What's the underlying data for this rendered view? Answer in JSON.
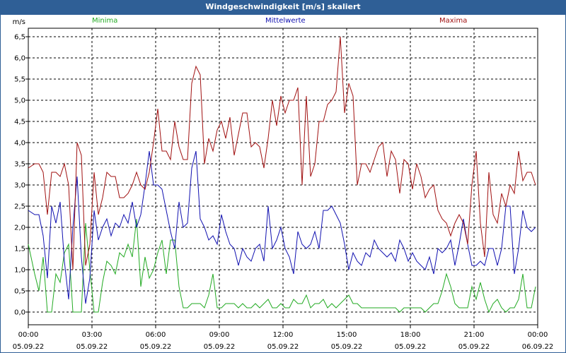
{
  "window": {
    "title": "Windgeschwindigkeit [m/s] skaliert"
  },
  "chart_data": {
    "type": "line",
    "title": "Windgeschwindigkeit [m/s] skaliert",
    "ylabel": "m/s",
    "ylim": [
      -0.3,
      6.7
    ],
    "xlim": [
      0,
      24
    ],
    "y_ticks": [
      "0,0",
      "0,5",
      "1,0",
      "1,5",
      "2,0",
      "2,5",
      "3,0",
      "3,5",
      "4,0",
      "4,5",
      "5,0",
      "5,5",
      "6,0",
      "6,5"
    ],
    "y_tick_values": [
      0,
      0.5,
      1,
      1.5,
      2,
      2.5,
      3,
      3.5,
      4,
      4.5,
      5,
      5.5,
      6,
      6.5
    ],
    "x_ticks": [
      {
        "time": "00:00",
        "date": "05.09.22"
      },
      {
        "time": "03:00",
        "date": "05.09.22"
      },
      {
        "time": "06:00",
        "date": "05.09.22"
      },
      {
        "time": "09:00",
        "date": "05.09.22"
      },
      {
        "time": "12:00",
        "date": "05.09.22"
      },
      {
        "time": "15:00",
        "date": "05.09.22"
      },
      {
        "time": "18:00",
        "date": "05.09.22"
      },
      {
        "time": "21:00",
        "date": "05.09.22"
      },
      {
        "time": "00:00",
        "date": "06.09.22"
      }
    ],
    "x_tick_values": [
      0,
      3,
      6,
      9,
      12,
      15,
      18,
      21,
      24
    ],
    "grid": true,
    "legend_position": "top",
    "series": [
      {
        "name": "Minima",
        "color": "#22aa22",
        "x": [
          0,
          0.3,
          0.5,
          0.7,
          0.9,
          1.1,
          1.3,
          1.5,
          1.7,
          1.9,
          2.1,
          2.3,
          2.5,
          2.7,
          2.9,
          3.1,
          3.3,
          3.5,
          3.7,
          3.9,
          4.1,
          4.3,
          4.5,
          4.7,
          4.9,
          5.1,
          5.3,
          5.5,
          5.7,
          5.9,
          6.1,
          6.3,
          6.5,
          6.7,
          6.9,
          7.1,
          7.3,
          7.5,
          7.7,
          7.9,
          8.1,
          8.3,
          8.5,
          8.7,
          8.9,
          9.1,
          9.3,
          9.5,
          9.7,
          9.9,
          10.1,
          10.3,
          10.5,
          10.7,
          10.9,
          11.1,
          11.3,
          11.5,
          11.7,
          11.9,
          12.1,
          12.3,
          12.5,
          12.7,
          12.9,
          13.1,
          13.3,
          13.5,
          13.7,
          13.9,
          14.1,
          14.3,
          14.5,
          14.7,
          14.9,
          15.1,
          15.3,
          15.5,
          15.7,
          15.9,
          16.1,
          16.3,
          16.5,
          16.7,
          16.9,
          17.1,
          17.3,
          17.5,
          17.7,
          17.9,
          18.1,
          18.3,
          18.5,
          18.7,
          18.9,
          19.1,
          19.3,
          19.5,
          19.7,
          19.9,
          20.1,
          20.3,
          20.5,
          20.7,
          20.9,
          21.1,
          21.3,
          21.5,
          21.7,
          21.9,
          22.1,
          22.3,
          22.5,
          22.7,
          22.9,
          23.1,
          23.3,
          23.5,
          23.7,
          23.9
        ],
        "values": [
          1.6,
          0.9,
          0.5,
          1.3,
          0,
          0,
          0.9,
          0.7,
          1.4,
          1.6,
          0,
          0,
          0,
          2.1,
          1.0,
          0,
          0,
          0.7,
          1.2,
          1.1,
          0.9,
          1.4,
          1.3,
          1.6,
          1.3,
          2.2,
          0.6,
          1.3,
          0.8,
          1.0,
          1.4,
          1.7,
          0.9,
          1.7,
          1.7,
          0.6,
          0.1,
          0.1,
          0.2,
          0.2,
          0.2,
          0.1,
          0.4,
          0.9,
          0.1,
          0.1,
          0.2,
          0.2,
          0.2,
          0.1,
          0.2,
          0.1,
          0.1,
          0.2,
          0.1,
          0.2,
          0.3,
          0.1,
          0.1,
          0.2,
          0.1,
          0.1,
          0.3,
          0.2,
          0.2,
          0.4,
          0.1,
          0.2,
          0.2,
          0.3,
          0.1,
          0.2,
          0.1,
          0.2,
          0.3,
          0.4,
          0.2,
          0.2,
          0.1,
          0.1,
          0.1,
          0.1,
          0.1,
          0.1,
          0.1,
          0.1,
          0.1,
          0.0,
          0.1,
          0.1,
          0.1,
          0.1,
          0.1,
          0.0,
          0.1,
          0.2,
          0.2,
          0.5,
          0.9,
          0.6,
          0.2,
          0.1,
          0.1,
          0.1,
          0.6,
          0.3,
          0.7,
          0.3,
          0.0,
          0.2,
          0.3,
          0.1,
          0.0,
          0.1,
          0.1,
          0.3,
          0.9,
          0.1,
          0.1,
          0.6
        ]
      },
      {
        "name": "Mittelwerte",
        "color": "#1010b0",
        "x": [
          0,
          0.3,
          0.5,
          0.7,
          0.9,
          1.1,
          1.3,
          1.5,
          1.7,
          1.9,
          2.1,
          2.3,
          2.5,
          2.7,
          2.9,
          3.1,
          3.3,
          3.5,
          3.7,
          3.9,
          4.1,
          4.3,
          4.5,
          4.7,
          4.9,
          5.1,
          5.3,
          5.5,
          5.7,
          5.9,
          6.1,
          6.3,
          6.5,
          6.7,
          6.9,
          7.1,
          7.3,
          7.5,
          7.7,
          7.9,
          8.1,
          8.3,
          8.5,
          8.7,
          8.9,
          9.1,
          9.3,
          9.5,
          9.7,
          9.9,
          10.1,
          10.3,
          10.5,
          10.7,
          10.9,
          11.1,
          11.3,
          11.5,
          11.7,
          11.9,
          12.1,
          12.3,
          12.5,
          12.7,
          12.9,
          13.1,
          13.3,
          13.5,
          13.7,
          13.9,
          14.1,
          14.3,
          14.5,
          14.7,
          14.9,
          15.1,
          15.3,
          15.5,
          15.7,
          15.9,
          16.1,
          16.3,
          16.5,
          16.7,
          16.9,
          17.1,
          17.3,
          17.5,
          17.7,
          17.9,
          18.1,
          18.3,
          18.5,
          18.7,
          18.9,
          19.1,
          19.3,
          19.5,
          19.7,
          19.9,
          20.1,
          20.3,
          20.5,
          20.7,
          20.9,
          21.1,
          21.3,
          21.5,
          21.7,
          21.9,
          22.1,
          22.3,
          22.5,
          22.7,
          22.9,
          23.1,
          23.3,
          23.5,
          23.7,
          23.9
        ],
        "values": [
          2.4,
          2.3,
          2.3,
          1.8,
          0.8,
          2.5,
          2.1,
          2.6,
          1.2,
          0.3,
          2.0,
          3.2,
          1.3,
          0.2,
          0.8,
          2.4,
          1.7,
          2.0,
          2.2,
          1.8,
          2.1,
          2.0,
          2.3,
          2.1,
          2.6,
          2.0,
          2.3,
          3.0,
          3.8,
          3.0,
          3.0,
          2.9,
          2.4,
          1.9,
          1.5,
          2.6,
          2.0,
          2.1,
          3.4,
          3.8,
          2.2,
          2.0,
          1.7,
          1.8,
          1.6,
          2.3,
          1.9,
          1.6,
          1.5,
          1.1,
          1.5,
          1.3,
          1.2,
          1.5,
          1.6,
          1.2,
          2.5,
          1.5,
          1.7,
          2.0,
          1.5,
          1.3,
          0.9,
          1.9,
          1.6,
          1.5,
          1.6,
          1.9,
          1.5,
          2.4,
          2.4,
          2.5,
          2.3,
          2.1,
          1.6,
          1.0,
          1.4,
          1.2,
          1.1,
          1.4,
          1.3,
          1.7,
          1.5,
          1.4,
          1.3,
          1.4,
          1.2,
          1.7,
          1.5,
          1.2,
          1.4,
          1.2,
          1.1,
          1.0,
          1.3,
          0.9,
          1.5,
          1.4,
          1.5,
          1.7,
          1.1,
          1.6,
          2.2,
          1.6,
          1.1,
          1.1,
          1.2,
          1.1,
          1.5,
          1.5,
          1.1,
          1.5,
          2.5,
          2.5,
          0.9,
          1.5,
          2.4,
          2.0,
          1.9,
          2.0
        ],
        "continuous": true
      },
      {
        "name": "Maxima",
        "color": "#a01010",
        "x": [
          0,
          0.3,
          0.5,
          0.7,
          0.9,
          1.1,
          1.3,
          1.5,
          1.7,
          1.9,
          2.1,
          2.3,
          2.5,
          2.7,
          2.9,
          3.1,
          3.3,
          3.5,
          3.7,
          3.9,
          4.1,
          4.3,
          4.5,
          4.7,
          4.9,
          5.1,
          5.3,
          5.5,
          5.7,
          5.9,
          6.1,
          6.3,
          6.5,
          6.7,
          6.9,
          7.1,
          7.3,
          7.5,
          7.7,
          7.9,
          8.1,
          8.3,
          8.5,
          8.7,
          8.9,
          9.1,
          9.3,
          9.5,
          9.7,
          9.9,
          10.1,
          10.3,
          10.5,
          10.7,
          10.9,
          11.1,
          11.3,
          11.5,
          11.7,
          11.9,
          12.1,
          12.3,
          12.5,
          12.7,
          12.9,
          13.1,
          13.3,
          13.5,
          13.7,
          13.9,
          14.1,
          14.3,
          14.5,
          14.7,
          14.9,
          15.1,
          15.3,
          15.5,
          15.7,
          15.9,
          16.1,
          16.3,
          16.5,
          16.7,
          16.9,
          17.1,
          17.3,
          17.5,
          17.7,
          17.9,
          18.1,
          18.3,
          18.5,
          18.7,
          18.9,
          19.1,
          19.3,
          19.5,
          19.7,
          19.9,
          20.1,
          20.3,
          20.5,
          20.7,
          20.9,
          21.1,
          21.3,
          21.5,
          21.7,
          21.9,
          22.1,
          22.3,
          22.5,
          22.7,
          22.9,
          23.1,
          23.3,
          23.5,
          23.7,
          23.9
        ],
        "values": [
          3.4,
          3.5,
          3.5,
          3.3,
          2.3,
          3.3,
          3.3,
          3.2,
          3.5,
          3.0,
          1.0,
          4.0,
          3.7,
          1.1,
          1.6,
          3.3,
          2.3,
          2.7,
          3.3,
          3.2,
          3.2,
          2.7,
          2.7,
          2.8,
          3.0,
          3.3,
          3.0,
          2.9,
          3.3,
          4.0,
          4.8,
          3.8,
          3.8,
          3.6,
          4.5,
          3.9,
          3.6,
          3.6,
          5.4,
          5.8,
          5.6,
          3.5,
          4.1,
          3.8,
          4.3,
          4.5,
          4.1,
          4.6,
          3.7,
          4.2,
          4.7,
          4.7,
          3.9,
          4.0,
          3.9,
          3.4,
          4.1,
          5.0,
          4.4,
          5.1,
          4.7,
          5.0,
          5.0,
          5.3,
          3.0,
          5.1,
          3.2,
          3.5,
          4.5,
          4.5,
          4.9,
          5.0,
          5.2,
          6.5,
          4.7,
          5.4,
          5.1,
          3.0,
          3.5,
          3.5,
          3.3,
          3.6,
          3.9,
          4.0,
          3.2,
          3.8,
          3.6,
          2.8,
          3.6,
          3.5,
          2.9,
          3.5,
          3.2,
          2.7,
          2.9,
          3.0,
          2.4,
          2.2,
          2.1,
          1.8,
          2.1,
          2.3,
          2.1,
          1.6,
          3.0,
          3.8,
          2.1,
          1.3,
          3.3,
          2.3,
          2.1,
          2.8,
          2.5,
          3.0,
          2.8,
          3.8,
          3.1,
          3.3,
          3.3,
          3.0
        ],
        "continuous": true
      }
    ]
  }
}
